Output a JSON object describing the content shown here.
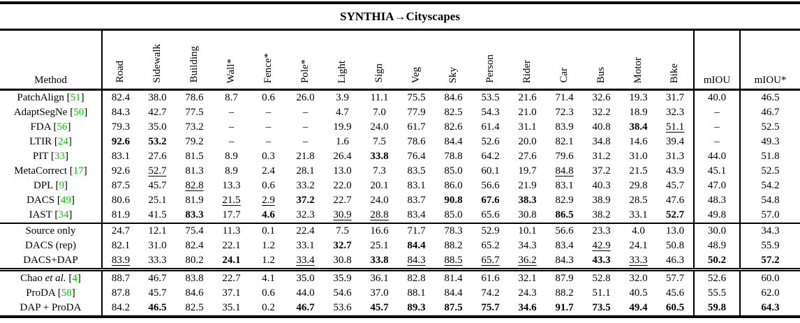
{
  "title": "SYNTHIA→Cityscapes",
  "colors": {
    "citation": "#00c800"
  },
  "table": {
    "method_header": "Method",
    "class_columns": [
      "Road",
      "Sidewalk",
      "Building",
      "Wall*",
      "Fence*",
      "Pole*",
      "Light",
      "Sign",
      "Veg",
      "Sky",
      "Person",
      "Rider",
      "Car",
      "Bus",
      "Motor",
      "Bike"
    ],
    "summary_columns": [
      "mIOU",
      "mIOU*"
    ],
    "sections": [
      {
        "rows": [
          {
            "method": "PatchAlign",
            "italic": "",
            "cite": "51",
            "values": [
              "82.4",
              "38.0",
              "78.6",
              "8.7",
              "0.6",
              "26.0",
              "3.9",
              "11.1",
              "75.5",
              "84.6",
              "53.5",
              "21.6",
              "71.4",
              "32.6",
              "19.3",
              "31.7",
              "40.0",
              "46.5"
            ],
            "bold": [],
            "underline": []
          },
          {
            "method": "AdaptSegNe",
            "italic": "",
            "cite": "50",
            "values": [
              "84.3",
              "42.7",
              "77.5",
              "–",
              "–",
              "–",
              "4.7",
              "7.0",
              "77.9",
              "82.5",
              "54.3",
              "21.0",
              "72.3",
              "32.2",
              "18.9",
              "32.3",
              "–",
              "46.7"
            ],
            "bold": [],
            "underline": []
          },
          {
            "method": "FDA",
            "italic": "",
            "cite": "56",
            "values": [
              "79.3",
              "35.0",
              "73.2",
              "–",
              "–",
              "–",
              "19.9",
              "24.0",
              "61.7",
              "82.6",
              "61.4",
              "31.1",
              "83.9",
              "40.8",
              "38.4",
              "51.1",
              "–",
              "52.5"
            ],
            "bold": [
              14
            ],
            "underline": [
              15
            ]
          },
          {
            "method": "LTIR",
            "italic": "",
            "cite": "24",
            "values": [
              "92.6",
              "53.2",
              "79.2",
              "–",
              "–",
              "–",
              "1.6",
              "7.5",
              "78.6",
              "84.4",
              "52.6",
              "20.0",
              "82.1",
              "34.8",
              "14.6",
              "39.4",
              "–",
              "49.3"
            ],
            "bold": [
              0,
              1
            ],
            "underline": []
          },
          {
            "method": "PIT",
            "italic": "",
            "cite": "33",
            "values": [
              "83.1",
              "27.6",
              "81.5",
              "8.9",
              "0.3",
              "21.8",
              "26.4",
              "33.8",
              "76.4",
              "78.8",
              "64.2",
              "27.6",
              "79.6",
              "31.2",
              "31.0",
              "31.3",
              "44.0",
              "51.8"
            ],
            "bold": [
              7
            ],
            "underline": []
          },
          {
            "method": "MetaCorrect",
            "italic": "",
            "cite": "17",
            "values": [
              "92.6",
              "52.7",
              "81.3",
              "8.9",
              "2.4",
              "28.1",
              "13.0",
              "7.3",
              "83.5",
              "85.0",
              "60.1",
              "19.7",
              "84.8",
              "37.2",
              "21.5",
              "43.9",
              "45.1",
              "52.5"
            ],
            "bold": [],
            "underline": [
              1,
              12
            ]
          },
          {
            "method": "DPL",
            "italic": "",
            "cite": "9",
            "values": [
              "87.5",
              "45.7",
              "82.8",
              "13.3",
              "0.6",
              "33.2",
              "22.0",
              "20.1",
              "83.1",
              "86.0",
              "56.6",
              "21.9",
              "83.1",
              "40.3",
              "29.8",
              "45.7",
              "47.0",
              "54.2"
            ],
            "bold": [],
            "underline": [
              2
            ]
          },
          {
            "method": "DACS",
            "italic": "",
            "cite": "49",
            "values": [
              "80.6",
              "25.1",
              "81.9",
              "21.5",
              "2.9",
              "37.2",
              "22.7",
              "24.0",
              "83.7",
              "90.8",
              "67.6",
              "38.3",
              "82.9",
              "38.9",
              "28.5",
              "47.6",
              "48.3",
              "54.8"
            ],
            "bold": [
              5,
              9,
              10,
              11
            ],
            "underline": [
              3,
              4
            ]
          },
          {
            "method": "IAST",
            "italic": "",
            "cite": "34",
            "values": [
              "81.9",
              "41.5",
              "83.3",
              "17.7",
              "4.6",
              "32.3",
              "30.9",
              "28.8",
              "83.4",
              "85.0",
              "65.6",
              "30.8",
              "86.5",
              "38.2",
              "33.1",
              "52.7",
              "49.8",
              "57.0"
            ],
            "bold": [
              2,
              4,
              12,
              15
            ],
            "underline": [
              6,
              7
            ]
          }
        ]
      },
      {
        "rows": [
          {
            "method": "Source only",
            "italic": "",
            "cite": null,
            "values": [
              "24.7",
              "12.1",
              "75.4",
              "11.3",
              "0.1",
              "22.4",
              "7.5",
              "16.6",
              "71.7",
              "78.3",
              "52.9",
              "10.1",
              "56.6",
              "23.3",
              "4.0",
              "13.0",
              "30.0",
              "34.3"
            ],
            "bold": [],
            "underline": []
          },
          {
            "method": "DACS (rep)",
            "italic": "",
            "cite": null,
            "values": [
              "82.1",
              "31.0",
              "82.4",
              "22.1",
              "1.2",
              "33.1",
              "32.7",
              "25.1",
              "84.4",
              "88.2",
              "65.2",
              "34.3",
              "83.4",
              "42.9",
              "24.1",
              "50.8",
              "48.9",
              "55.9"
            ],
            "bold": [
              6,
              8
            ],
            "underline": [
              13
            ]
          },
          {
            "method": "DACS+DAP",
            "italic": "",
            "cite": null,
            "values": [
              "83.9",
              "33.3",
              "80.2",
              "24.1",
              "1.2",
              "33.4",
              "30.8",
              "33.8",
              "84.3",
              "88.5",
              "65.7",
              "36.2",
              "84.3",
              "43.3",
              "33.3",
              "46.3",
              "50.2",
              "57.2"
            ],
            "bold": [
              3,
              7,
              13,
              16,
              17
            ],
            "underline": [
              0,
              5,
              8,
              9,
              10,
              11,
              14
            ]
          }
        ]
      },
      {
        "rows": [
          {
            "method": "Chao",
            "italic": "et al.",
            "cite": "4",
            "values": [
              "88.7",
              "46.7",
              "83.8",
              "22.7",
              "4.1",
              "35.0",
              "35.9",
              "36.1",
              "82.8",
              "81.4",
              "61.6",
              "32.1",
              "87.9",
              "52.8",
              "32.0",
              "57.7",
              "52.6",
              "60.0"
            ],
            "bold": [],
            "underline": []
          },
          {
            "method": "ProDA",
            "italic": "",
            "cite": "58",
            "values": [
              "87.8",
              "45.7",
              "84.6",
              "37.1",
              "0.6",
              "44.0",
              "54.6",
              "37.0",
              "88.1",
              "84.4",
              "74.2",
              "24.3",
              "88.2",
              "51.1",
              "40.5",
              "45.6",
              "55.5",
              "62.0"
            ],
            "bold": [],
            "underline": []
          },
          {
            "method": "DAP + ProDA",
            "italic": "",
            "cite": null,
            "values": [
              "84.2",
              "46.5",
              "82.5",
              "35.1",
              "0.2",
              "46.7",
              "53.6",
              "45.7",
              "89.3",
              "87.5",
              "75.7",
              "34.6",
              "91.7",
              "73.5",
              "49.4",
              "60.5",
              "59.8",
              "64.3"
            ],
            "bold": [
              1,
              5,
              7,
              8,
              9,
              10,
              11,
              12,
              13,
              14,
              15,
              16,
              17
            ],
            "underline": []
          }
        ]
      }
    ]
  }
}
